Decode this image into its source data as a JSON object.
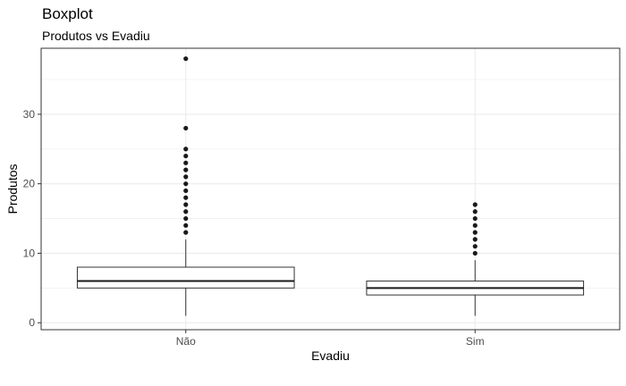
{
  "chart_data": {
    "type": "boxplot",
    "title": "Boxplot",
    "subtitle": "Produtos vs Evadiu",
    "xlabel": "Evadiu",
    "ylabel": "Produtos",
    "ylim": [
      -1,
      39.5
    ],
    "yticks": [
      0,
      10,
      20,
      30
    ],
    "grid": true,
    "categories": [
      "Não",
      "Sim"
    ],
    "boxes": [
      {
        "category": "Não",
        "whisker_low": 1,
        "q1": 5,
        "median": 6,
        "q3": 8,
        "whisker_high": 12,
        "outliers": [
          13,
          14,
          15,
          16,
          17,
          18,
          19,
          20,
          21,
          22,
          23,
          24,
          25,
          28,
          38
        ]
      },
      {
        "category": "Sim",
        "whisker_low": 1,
        "q1": 4,
        "median": 5,
        "q3": 6,
        "whisker_high": 9,
        "outliers": [
          10,
          11,
          12,
          13,
          14,
          15,
          16,
          17
        ]
      }
    ]
  }
}
